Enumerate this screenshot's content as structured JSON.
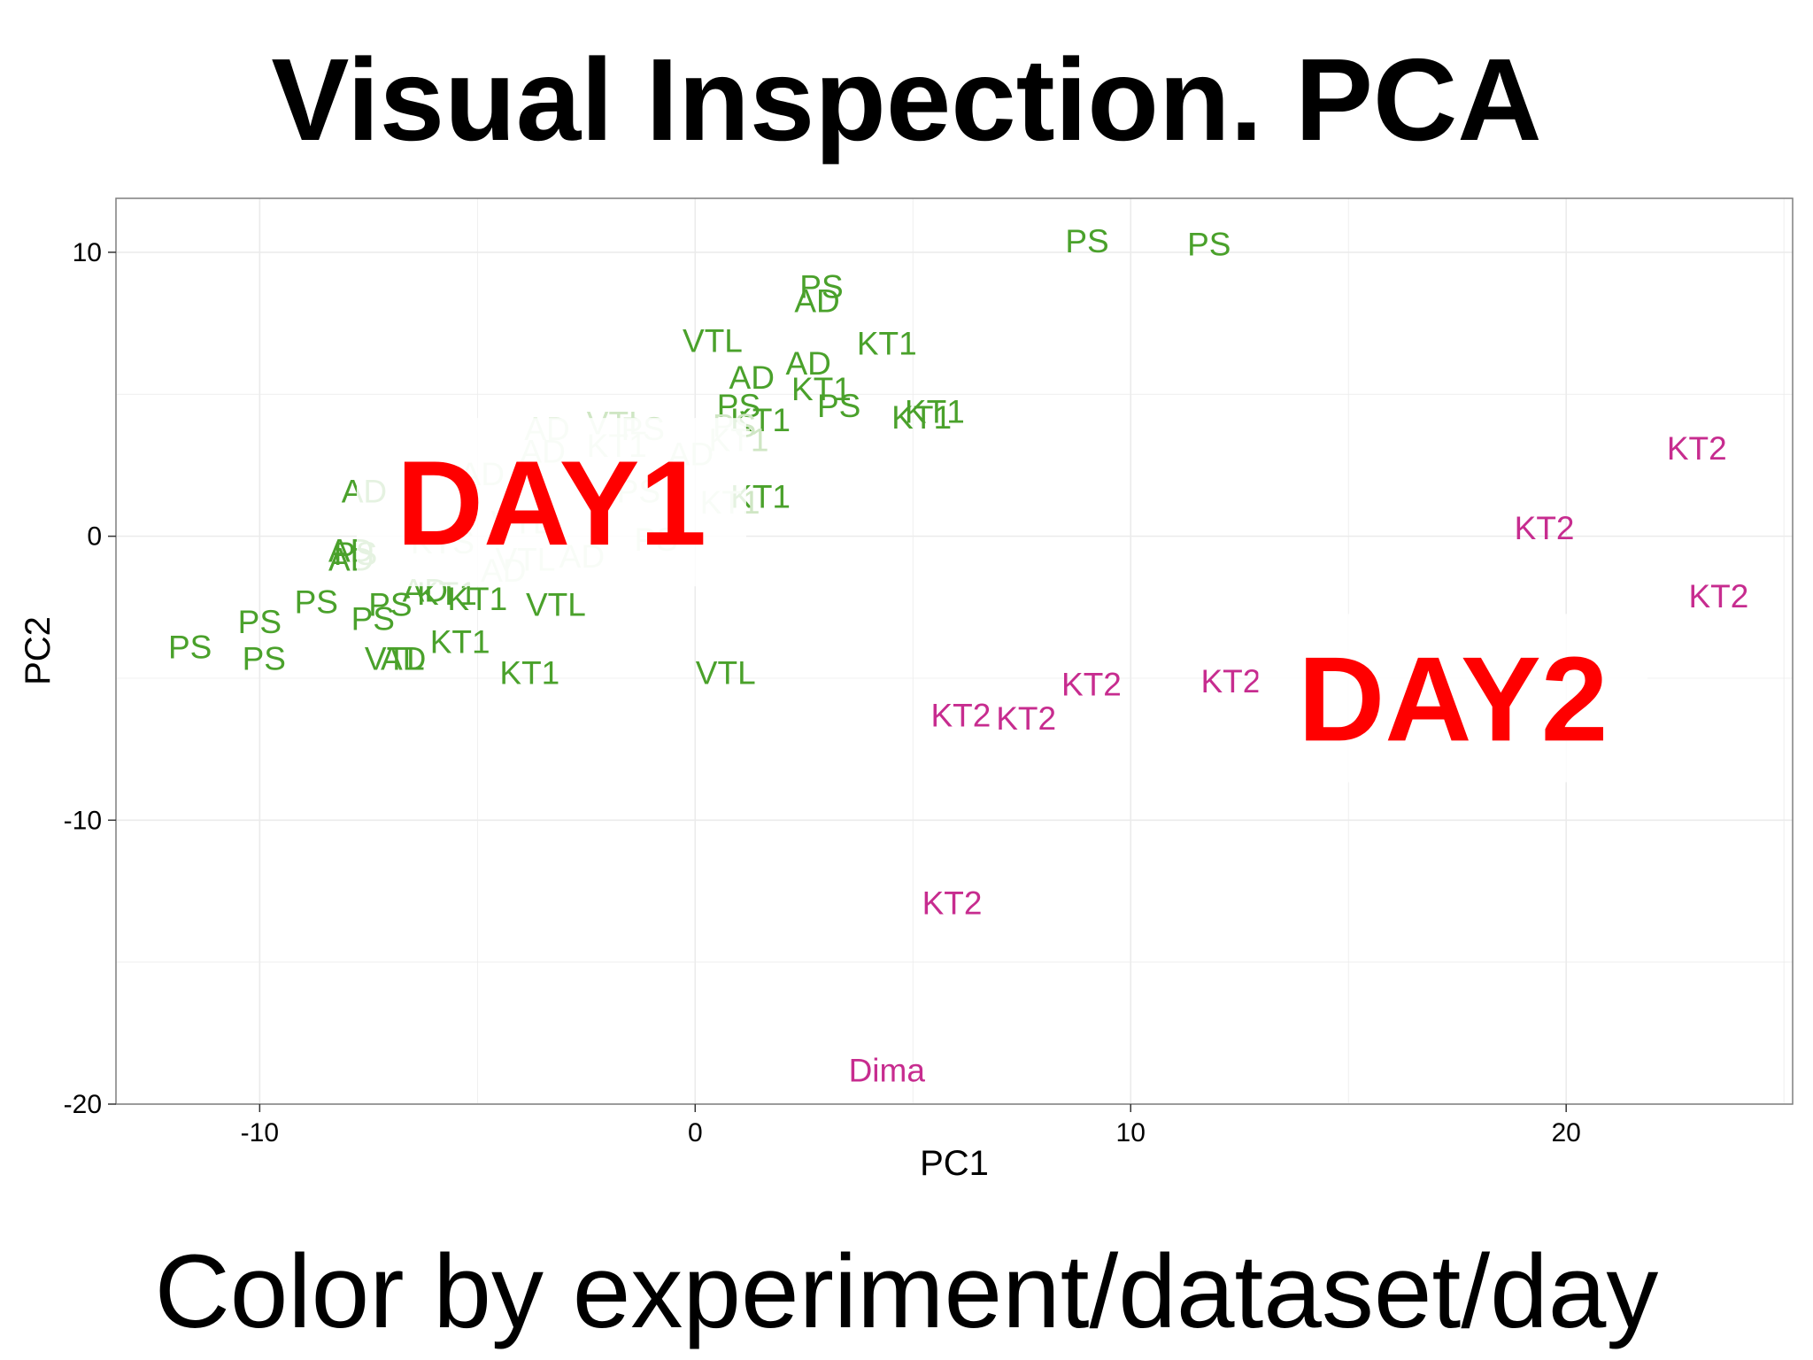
{
  "slide": {
    "title": "Visual Inspection. PCA",
    "subtitle": "Color by experiment/dataset/day"
  },
  "colors": {
    "day1": "#4aa12b",
    "day1_faded": "#cfe6c4",
    "day2": "#c72c8f",
    "overlay_label": "#ff0000",
    "grid": "#ebebeb",
    "panel_border": "#7f7f7f"
  },
  "chart_data": {
    "type": "scatter",
    "title": "",
    "xlabel": "PC1",
    "ylabel": "PC2",
    "xlim": [
      -13.3,
      25.2
    ],
    "ylim": [
      -20,
      11.9
    ],
    "x_ticks": [
      -10,
      0,
      10,
      20
    ],
    "x_tick_labels": [
      "-10",
      "0",
      "10",
      "20"
    ],
    "y_ticks": [
      -20,
      -10,
      0,
      10
    ],
    "y_tick_labels": [
      "-20",
      "-10",
      "0",
      "10"
    ],
    "grid": true,
    "annotations": [
      {
        "text": "DAY1",
        "x": -3.3,
        "y": 1.2
      },
      {
        "text": "DAY2",
        "x": 17.4,
        "y": -5.7
      }
    ],
    "series": [
      {
        "name": "day1",
        "color": "#4aa12b",
        "points": [
          {
            "x": 9.0,
            "y": 10.4,
            "label": "PS"
          },
          {
            "x": 11.8,
            "y": 10.3,
            "label": "PS"
          },
          {
            "x": 2.9,
            "y": 8.8,
            "label": "PS"
          },
          {
            "x": 2.8,
            "y": 8.3,
            "label": "AD"
          },
          {
            "x": 0.4,
            "y": 6.9,
            "label": "VTL"
          },
          {
            "x": 4.4,
            "y": 6.8,
            "label": "KT1"
          },
          {
            "x": 2.6,
            "y": 6.1,
            "label": "AD"
          },
          {
            "x": 1.3,
            "y": 5.6,
            "label": "AD"
          },
          {
            "x": 2.9,
            "y": 5.2,
            "label": "KT1"
          },
          {
            "x": 1.0,
            "y": 4.6,
            "label": "PS"
          },
          {
            "x": 3.3,
            "y": 4.6,
            "label": "PS"
          },
          {
            "x": 5.5,
            "y": 4.4,
            "label": "KT1"
          },
          {
            "x": 1.5,
            "y": 4.1,
            "label": "KT1"
          },
          {
            "x": 5.2,
            "y": 4.2,
            "label": "KT1"
          },
          {
            "x": -7.6,
            "y": 1.6,
            "label": "AD"
          },
          {
            "x": 1.5,
            "y": 1.4,
            "label": "KT1"
          },
          {
            "x": -7.9,
            "y": -0.5,
            "label": "AD"
          },
          {
            "x": -7.9,
            "y": -0.8,
            "label": "AD"
          },
          {
            "x": -7.8,
            "y": -0.6,
            "label": "PS"
          },
          {
            "x": -8.7,
            "y": -2.3,
            "label": "PS"
          },
          {
            "x": -7.0,
            "y": -2.4,
            "label": "PS"
          },
          {
            "x": -6.2,
            "y": -1.9,
            "label": "AD"
          },
          {
            "x": -5.7,
            "y": -2.0,
            "label": "KT1"
          },
          {
            "x": -5.0,
            "y": -2.2,
            "label": "KT1"
          },
          {
            "x": -3.2,
            "y": -2.4,
            "label": "VTL"
          },
          {
            "x": -10.0,
            "y": -3.0,
            "label": "PS"
          },
          {
            "x": -7.4,
            "y": -2.9,
            "label": "PS"
          },
          {
            "x": -11.6,
            "y": -3.9,
            "label": "PS"
          },
          {
            "x": -9.9,
            "y": -4.3,
            "label": "PS"
          },
          {
            "x": -5.4,
            "y": -3.7,
            "label": "KT1"
          },
          {
            "x": -6.9,
            "y": -4.3,
            "label": "VTL"
          },
          {
            "x": -6.7,
            "y": -4.3,
            "label": "AD"
          },
          {
            "x": -3.8,
            "y": -4.8,
            "label": "KT1"
          },
          {
            "x": 0.7,
            "y": -4.8,
            "label": "VTL"
          }
        ]
      },
      {
        "name": "day1_occluded",
        "color": "#cfe6c4",
        "points": [
          {
            "x": -3.4,
            "y": 3.8,
            "label": "AD"
          },
          {
            "x": -1.8,
            "y": 4.0,
            "label": "VTL"
          },
          {
            "x": -1.2,
            "y": 3.8,
            "label": "PS"
          },
          {
            "x": 0.9,
            "y": 3.9,
            "label": "PS"
          },
          {
            "x": -3.5,
            "y": 3.0,
            "label": "AD"
          },
          {
            "x": -1.8,
            "y": 3.2,
            "label": "KT1"
          },
          {
            "x": -0.1,
            "y": 2.9,
            "label": "AD"
          },
          {
            "x": 1.0,
            "y": 3.4,
            "label": "KT1"
          },
          {
            "x": -4.9,
            "y": 2.2,
            "label": "AD"
          },
          {
            "x": -1.3,
            "y": 1.6,
            "label": "PS"
          },
          {
            "x": 0.8,
            "y": 1.2,
            "label": "KT1"
          },
          {
            "x": -5.8,
            "y": -0.2,
            "label": "KTS"
          },
          {
            "x": -4.0,
            "y": 0.5,
            "label": "VTL"
          },
          {
            "x": -2.6,
            "y": -0.7,
            "label": "AD"
          },
          {
            "x": -0.9,
            "y": -0.1,
            "label": "PS"
          },
          {
            "x": -4.4,
            "y": -1.2,
            "label": "AD"
          },
          {
            "x": -3.9,
            "y": -0.8,
            "label": "VTL"
          }
        ]
      },
      {
        "name": "day2",
        "color": "#c72c8f",
        "points": [
          {
            "x": 23.0,
            "y": 3.1,
            "label": "KT2"
          },
          {
            "x": 19.5,
            "y": 0.3,
            "label": "KT2"
          },
          {
            "x": 23.5,
            "y": -2.1,
            "label": "KT2"
          },
          {
            "x": 9.1,
            "y": -5.2,
            "label": "KT2"
          },
          {
            "x": 12.3,
            "y": -5.1,
            "label": "KT2"
          },
          {
            "x": 6.1,
            "y": -6.3,
            "label": "KT2"
          },
          {
            "x": 7.6,
            "y": -6.4,
            "label": "KT2"
          },
          {
            "x": 5.9,
            "y": -12.9,
            "label": "KT2"
          },
          {
            "x": 4.4,
            "y": -18.8,
            "label": "Dima"
          }
        ]
      }
    ]
  }
}
